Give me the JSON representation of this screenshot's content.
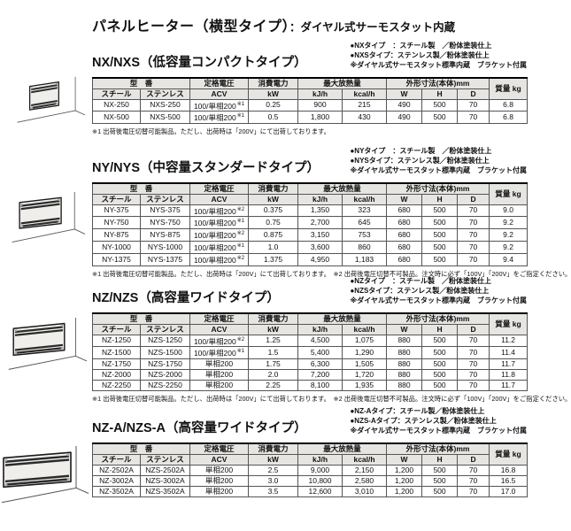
{
  "title": {
    "main": "パネルヒーター（横型タイプ）",
    "sub": "：ダイヤル式サーモスタット内蔵"
  },
  "table_headers": {
    "model": "型　番",
    "steel": "スチール",
    "stainless": "ステンレス",
    "voltage": "定格電圧",
    "voltage_unit": "ACV",
    "power": "消費電力",
    "power_unit": "kW",
    "heat": "最大放熱量",
    "heat_kj": "kJ/h",
    "heat_kcal": "kcal/h",
    "dims": "外形寸法(本体)mm",
    "dim_w": "W",
    "dim_h": "H",
    "dim_d": "D",
    "weight": "質量 kg"
  },
  "sections": [
    {
      "heading": "NX/NXS（低容量コンパクトタイプ）",
      "notes": [
        "●NXタイプ　：スチール製　／粉体塗装仕上",
        "●NXSタイプ：ステンレス製／粉体塗装仕上",
        "※ダイヤル式サーモスタット標準内蔵　ブラケット付属"
      ],
      "rows": [
        [
          "NX-250",
          "NXS-250",
          "100/単相200※1",
          "0.25",
          "900",
          "215",
          "490",
          "500",
          "70",
          "6.8"
        ],
        [
          "NX-500",
          "NXS-500",
          "100/単相200※1",
          "0.5",
          "1,800",
          "430",
          "490",
          "500",
          "70",
          "6.8"
        ]
      ],
      "footnote": "※1 出荷後電圧切替可能製品。ただし、出荷時は「200V」にて出荷しております。"
    },
    {
      "heading": "NY/NYS（中容量スタンダードタイプ）",
      "notes": [
        "●NYタイプ　：スチール製　／粉体塗装仕上",
        "●NYSタイプ：ステンレス製／粉体塗装仕上",
        "※ダイヤル式サーモスタット標準内蔵　ブラケット付属"
      ],
      "rows": [
        [
          "NY-375",
          "NYS-375",
          "100/単相200※2",
          "0.375",
          "1,350",
          "323",
          "680",
          "500",
          "70",
          "9.0"
        ],
        [
          "NY-750",
          "NYS-750",
          "100/単相200※1",
          "0.75",
          "2,700",
          "645",
          "680",
          "500",
          "70",
          "9.2"
        ],
        [
          "NY-875",
          "NYS-875",
          "100/単相200※2",
          "0.875",
          "3,150",
          "753",
          "680",
          "500",
          "70",
          "9.2"
        ],
        [
          "NY-1000",
          "NYS-1000",
          "100/単相200※1",
          "1.0",
          "3,600",
          "860",
          "680",
          "500",
          "70",
          "9.2"
        ],
        [
          "NY-1375",
          "NYS-1375",
          "100/単相200※2",
          "1.375",
          "4,950",
          "1,183",
          "680",
          "500",
          "70",
          "9.4"
        ]
      ],
      "footnote": "※1 出荷後電圧切替可能製品。ただし、出荷時は「200V」にて出荷しております。　※2 出荷後電圧切替不可製品。注文時に必ず「100V」「200V」をご指定ください。"
    },
    {
      "heading": "NZ/NZS（高容量ワイドタイプ）",
      "notes": [
        "●NZタイプ　：スチール製　／粉体塗装仕上",
        "●NZSタイプ：ステンレス製／粉体塗装仕上",
        "※ダイヤル式サーモスタット標準内蔵　ブラケット付属"
      ],
      "rows": [
        [
          "NZ-1250",
          "NZS-1250",
          "100/単相200※2",
          "1.25",
          "4,500",
          "1,075",
          "880",
          "500",
          "70",
          "11.2"
        ],
        [
          "NZ-1500",
          "NZS-1500",
          "100/単相200※1",
          "1.5",
          "5,400",
          "1,290",
          "880",
          "500",
          "70",
          "11.4"
        ],
        [
          "NZ-1750",
          "NZS-1750",
          "単相200",
          "1.75",
          "6,300",
          "1,505",
          "880",
          "500",
          "70",
          "11.7"
        ],
        [
          "NZ-2000",
          "NZS-2000",
          "単相200",
          "2.0",
          "7,200",
          "1,720",
          "880",
          "500",
          "70",
          "11.8"
        ],
        [
          "NZ-2250",
          "NZS-2250",
          "単相200",
          "2.25",
          "8,100",
          "1,935",
          "880",
          "500",
          "70",
          "11.7"
        ]
      ],
      "footnote": "※1 出荷後電圧切替可能製品。ただし、出荷時は「200V」にて出荷しております。　※2 出荷後電圧切替不可製品。注文時に必ず「100V」「200V」をご指定ください。"
    },
    {
      "heading": "NZ-A/NZS-A（高容量ワイドタイプ）",
      "notes": [
        "●NZ-Aタイプ：スチール製／粉体塗装仕上",
        "●NZS-Aタイプ：ステンレス製／粉体塗装仕上",
        "※ダイヤル式サーモスタット標準内蔵　ブラケット付属"
      ],
      "rows": [
        [
          "NZ-2502A",
          "NZS-2502A",
          "単相200",
          "2.5",
          "9,000",
          "2,150",
          "1,200",
          "500",
          "70",
          "16.8"
        ],
        [
          "NZ-3002A",
          "NZS-3002A",
          "単相200",
          "3.0",
          "10,800",
          "2,580",
          "1,200",
          "500",
          "70",
          "16.5"
        ],
        [
          "NZ-3502A",
          "NZS-3502A",
          "単相200",
          "3.5",
          "12,600",
          "3,010",
          "1,200",
          "500",
          "70",
          "17.0"
        ]
      ],
      "footnote": ""
    }
  ]
}
